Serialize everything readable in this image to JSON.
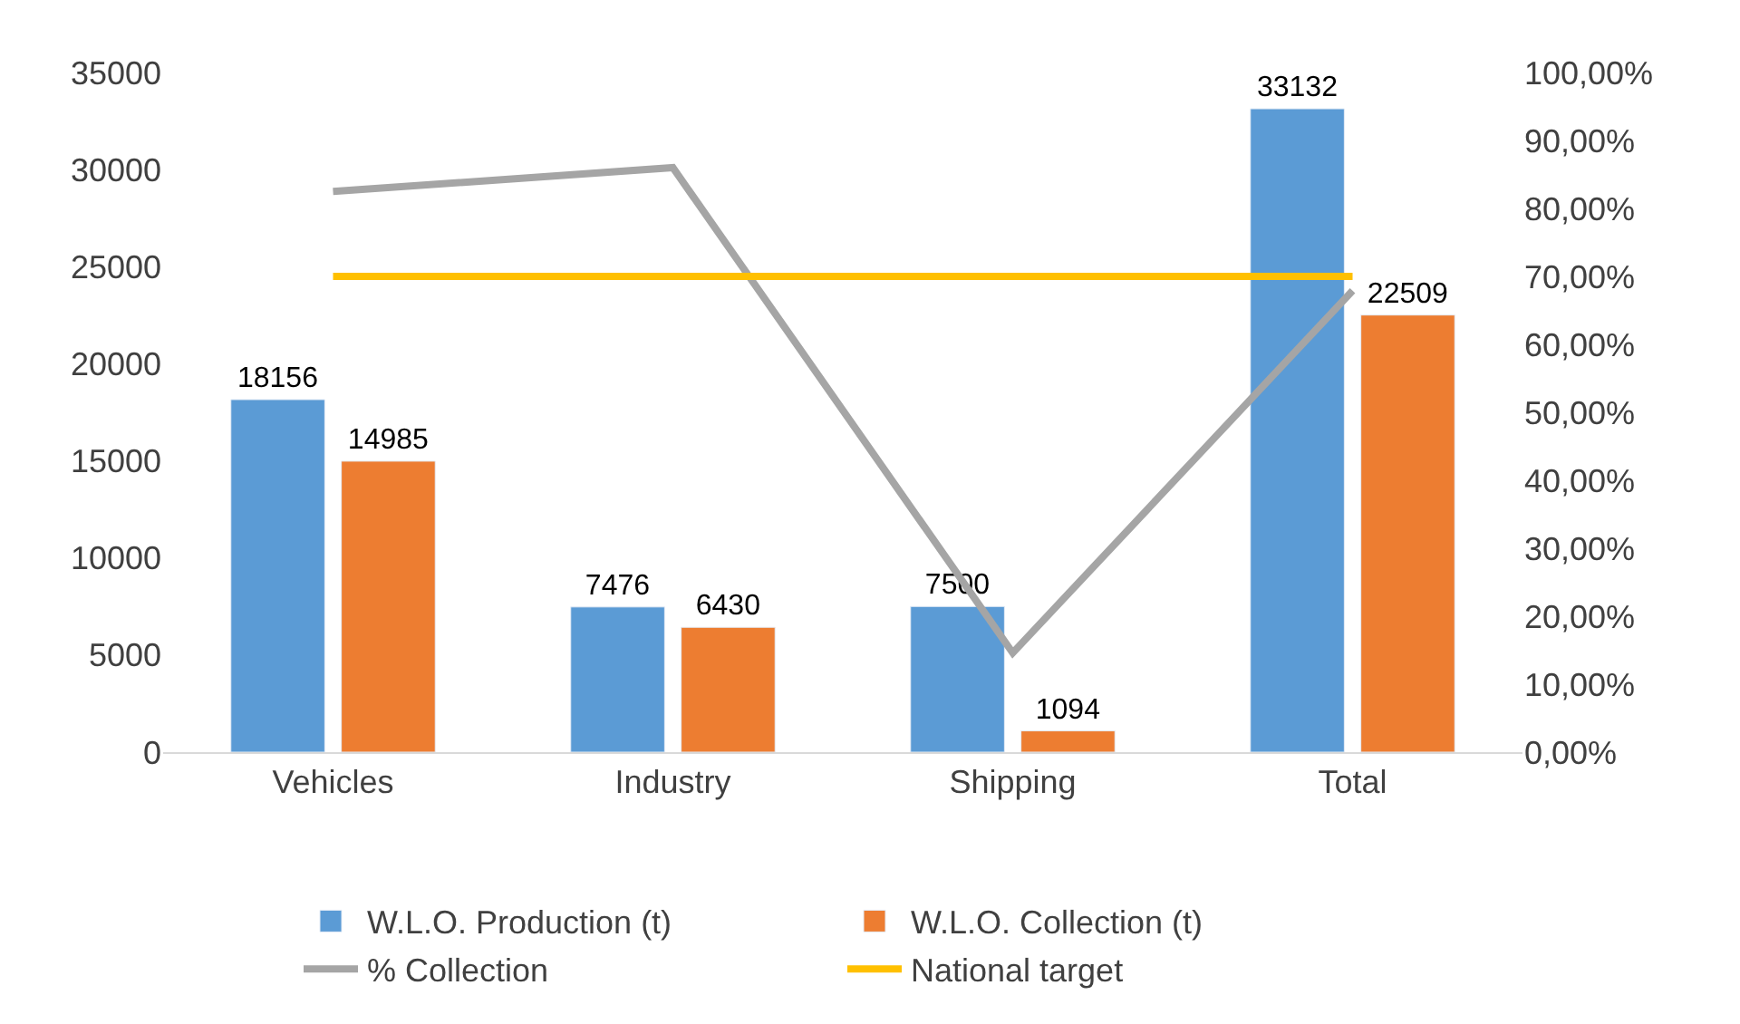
{
  "chart_data": {
    "type": "bar",
    "categories": [
      "Vehicles",
      "Industry",
      "Shipping",
      "Total"
    ],
    "series": [
      {
        "name": "W.L.O. Production (t)",
        "color": "#5b9bd5",
        "values": [
          18156,
          7476,
          7500,
          33132
        ],
        "value_labels": [
          "18156",
          "7476",
          "7500",
          "33132"
        ]
      },
      {
        "name": "W.L.O. Collection (t)",
        "color": "#ed7d31",
        "values": [
          14985,
          6430,
          1094,
          22509
        ],
        "value_labels": [
          "14985",
          "6430",
          "1094",
          "22509"
        ]
      },
      {
        "name": "% Collection",
        "type": "line",
        "axis": "y2",
        "color": "#a5a5a5",
        "values": [
          82.5,
          86.0,
          14.6,
          67.9
        ]
      },
      {
        "name": "National target",
        "type": "line",
        "axis": "y2",
        "color": "#ffc000",
        "values": [
          70,
          70,
          70,
          70
        ]
      }
    ],
    "ylim": [
      0,
      35000
    ],
    "yticks": [
      0,
      5000,
      10000,
      15000,
      20000,
      25000,
      30000,
      35000
    ],
    "y2lim": [
      0,
      100
    ],
    "y2ticks": [
      {
        "value": 0,
        "label": "0,00%"
      },
      {
        "value": 10,
        "label": "10,00%"
      },
      {
        "value": 20,
        "label": "20,00%"
      },
      {
        "value": 30,
        "label": "30,00%"
      },
      {
        "value": 40,
        "label": "40,00%"
      },
      {
        "value": 50,
        "label": "50,00%"
      },
      {
        "value": 60,
        "label": "60,00%"
      },
      {
        "value": 70,
        "label": "70,00%"
      },
      {
        "value": 80,
        "label": "80,00%"
      },
      {
        "value": 90,
        "label": "90,00%"
      },
      {
        "value": 100,
        "label": "100,00%"
      }
    ],
    "legend": "bottom",
    "marker": "none"
  }
}
